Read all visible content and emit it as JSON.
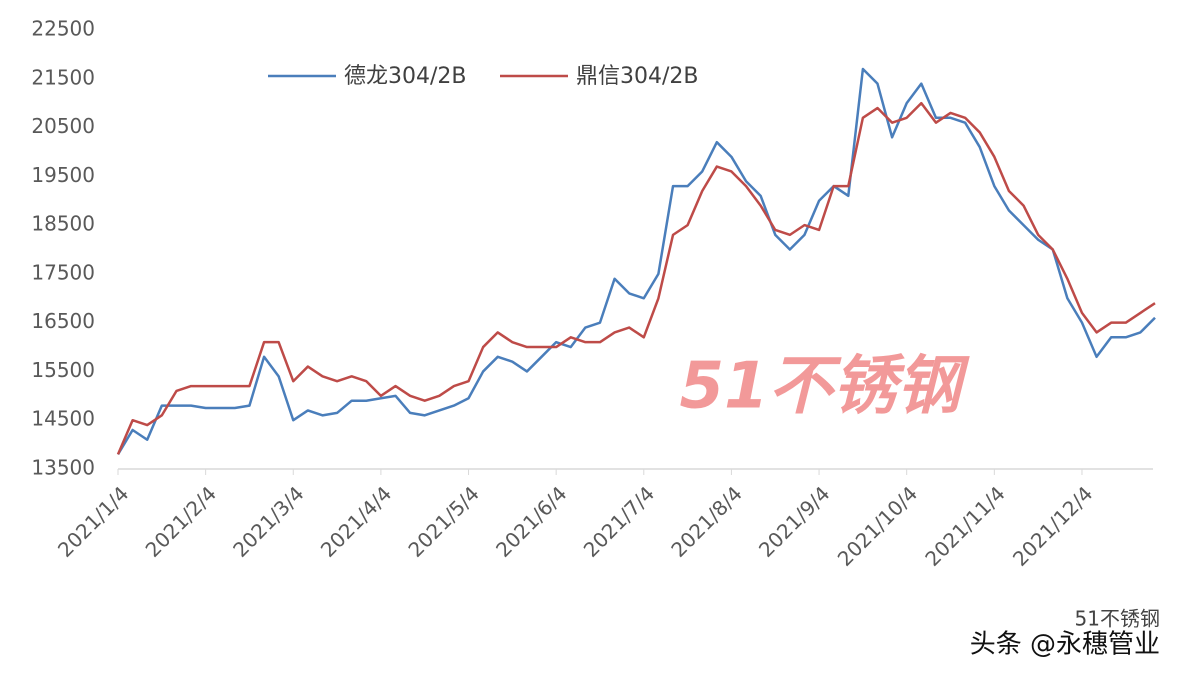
{
  "chart_data": {
    "type": "line",
    "categories": [
      "2021/1/4",
      null,
      null,
      null,
      null,
      null,
      "2021/2/4",
      null,
      null,
      null,
      null,
      null,
      "2021/3/4",
      null,
      null,
      null,
      null,
      null,
      "2021/4/4",
      null,
      null,
      null,
      null,
      null,
      "2021/5/4",
      null,
      null,
      null,
      null,
      null,
      "2021/6/4",
      null,
      null,
      null,
      null,
      null,
      "2021/7/4",
      null,
      null,
      null,
      null,
      null,
      "2021/8/4",
      null,
      null,
      null,
      null,
      null,
      "2021/9/4",
      null,
      null,
      null,
      null,
      null,
      "2021/10/4",
      null,
      null,
      null,
      null,
      null,
      "2021/11/4",
      null,
      null,
      null,
      null,
      null,
      "2021/12/4",
      null,
      null,
      null,
      null,
      null
    ],
    "series": [
      {
        "name": "德龙304/2B",
        "color": "#4a7ebb",
        "values": [
          13800,
          14300,
          14100,
          14800,
          14800,
          14800,
          14750,
          14750,
          14750,
          14800,
          15800,
          15400,
          14500,
          14700,
          14600,
          14650,
          14900,
          14900,
          14950,
          15000,
          14650,
          14600,
          14700,
          14800,
          14950,
          15500,
          15800,
          15700,
          15500,
          15800,
          16100,
          16000,
          16400,
          16500,
          17400,
          17100,
          17000,
          17500,
          19300,
          19300,
          19600,
          20200,
          19900,
          19400,
          19100,
          18300,
          18000,
          18300,
          19000,
          19300,
          19100,
          21700,
          21400,
          20300,
          21000,
          21400,
          20700,
          20700,
          20600,
          20100,
          19300,
          18800,
          18500,
          18200,
          18000,
          17000,
          16500,
          15800,
          16200,
          16200,
          16300,
          16600
        ]
      },
      {
        "name": "鼎信304/2B",
        "color": "#be4b48",
        "values": [
          13800,
          14500,
          14400,
          14600,
          15100,
          15200,
          15200,
          15200,
          15200,
          15200,
          16100,
          16100,
          15300,
          15600,
          15400,
          15300,
          15400,
          15300,
          15000,
          15200,
          15000,
          14900,
          15000,
          15200,
          15300,
          16000,
          16300,
          16100,
          16000,
          16000,
          16000,
          16200,
          16100,
          16100,
          16300,
          16400,
          16200,
          17000,
          18300,
          18500,
          19200,
          19700,
          19600,
          19300,
          18900,
          18400,
          18300,
          18500,
          18400,
          19300,
          19300,
          20700,
          20900,
          20600,
          20700,
          21000,
          20600,
          20800,
          20700,
          20400,
          19900,
          19200,
          18900,
          18300,
          18000,
          17400,
          16700,
          16300,
          16500,
          16500,
          16700,
          16900
        ]
      }
    ],
    "ylim": [
      13500,
      22500
    ],
    "yticks": [
      13500,
      14500,
      15500,
      16500,
      17500,
      18500,
      19500,
      20500,
      21500,
      22500
    ],
    "grid": false,
    "annotations": [
      "51不锈钢",
      "51不锈钢",
      "头条 @永穗管业"
    ]
  }
}
